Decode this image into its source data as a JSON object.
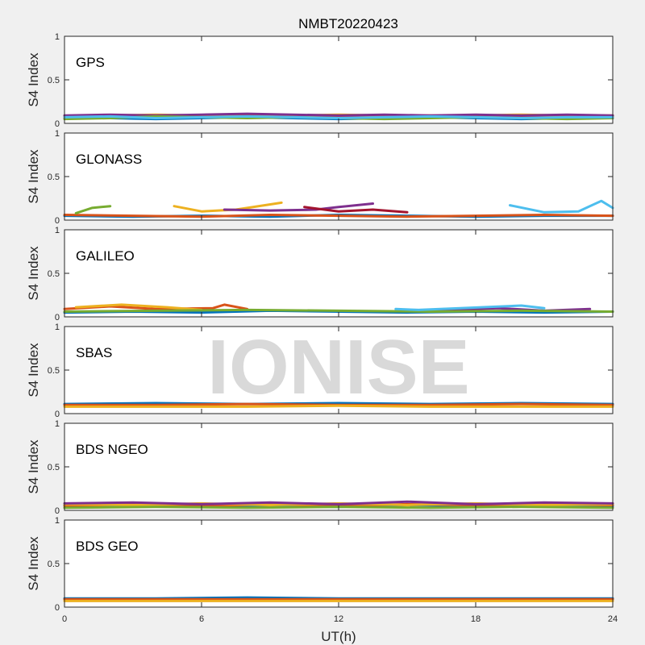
{
  "title": "NMBT20220423",
  "xlabel": "UT(h)",
  "watermark": "IONISE",
  "colors": {
    "background": "#f0f0f0",
    "axes_bg": "#ffffff",
    "axis": "#262626",
    "series": [
      "#0072BD",
      "#D95319",
      "#EDB120",
      "#7E2F8E",
      "#77AC30",
      "#4DBEEE",
      "#A2142F"
    ]
  },
  "chart_data": [
    {
      "type": "line",
      "label": "GPS",
      "ylabel": "S4 Index",
      "xlim": [
        0,
        24
      ],
      "ylim": [
        0,
        1
      ],
      "xticks": [
        0,
        6,
        12,
        18,
        24
      ],
      "yticks": [
        0,
        0.5,
        1
      ],
      "ytick_labels": [
        "0",
        "0.5",
        "1"
      ],
      "series": [
        {
          "x": [
            0,
            2,
            4,
            6,
            8,
            10,
            12,
            14,
            16,
            18,
            20,
            22,
            24
          ],
          "values": [
            0.07,
            0.06,
            0.05,
            0.06,
            0.07,
            0.06,
            0.05,
            0.06,
            0.07,
            0.06,
            0.05,
            0.06,
            0.06
          ]
        },
        {
          "x": [
            0,
            2,
            4,
            6,
            8,
            10,
            12,
            14,
            16,
            18,
            20,
            22,
            24
          ],
          "values": [
            0.06,
            0.08,
            0.07,
            0.08,
            0.09,
            0.08,
            0.07,
            0.08,
            0.09,
            0.08,
            0.07,
            0.08,
            0.08
          ]
        },
        {
          "x": [
            0,
            2,
            4,
            6,
            8,
            10,
            12,
            14,
            16,
            18,
            20,
            22,
            24
          ],
          "values": [
            0.08,
            0.09,
            0.1,
            0.09,
            0.08,
            0.09,
            0.1,
            0.09,
            0.08,
            0.09,
            0.1,
            0.09,
            0.09
          ]
        },
        {
          "x": [
            0,
            2,
            4,
            6,
            8,
            10,
            12,
            14,
            16,
            18,
            20,
            22,
            24
          ],
          "values": [
            0.09,
            0.1,
            0.09,
            0.1,
            0.11,
            0.1,
            0.09,
            0.1,
            0.09,
            0.1,
            0.09,
            0.1,
            0.09
          ]
        },
        {
          "x": [
            0,
            2,
            4,
            6,
            8,
            10,
            12,
            14,
            16,
            18,
            20,
            22,
            24
          ],
          "values": [
            0.05,
            0.06,
            0.08,
            0.07,
            0.06,
            0.07,
            0.06,
            0.05,
            0.06,
            0.07,
            0.06,
            0.05,
            0.06
          ]
        },
        {
          "x": [
            0,
            2,
            4,
            6,
            8,
            10,
            12,
            14,
            16,
            18,
            20,
            22,
            24
          ],
          "values": [
            0.07,
            0.08,
            0.06,
            0.07,
            0.08,
            0.07,
            0.06,
            0.07,
            0.08,
            0.07,
            0.06,
            0.07,
            0.07
          ]
        }
      ]
    },
    {
      "type": "line",
      "label": "GLONASS",
      "ylabel": "S4 Index",
      "xlim": [
        0,
        24
      ],
      "ylim": [
        0,
        1
      ],
      "xticks": [
        0,
        6,
        12,
        18,
        24
      ],
      "yticks": [
        0,
        0.5,
        1
      ],
      "ytick_labels": [
        "0",
        "0.5",
        "1"
      ],
      "series": [
        {
          "x": [
            0,
            3,
            6,
            9,
            12,
            15,
            18,
            21,
            24
          ],
          "values": [
            0.05,
            0.04,
            0.05,
            0.04,
            0.06,
            0.05,
            0.04,
            0.05,
            0.05
          ]
        },
        {
          "x": [
            0,
            3,
            6,
            9,
            12,
            15,
            18,
            21,
            24
          ],
          "values": [
            0.06,
            0.05,
            0.04,
            0.06,
            0.05,
            0.04,
            0.05,
            0.06,
            0.05
          ]
        },
        {
          "x": [
            4.8,
            6,
            7.5,
            9.5
          ],
          "values": [
            0.16,
            0.1,
            0.12,
            0.2
          ]
        },
        {
          "x": [
            7,
            9,
            11,
            12,
            13.5
          ],
          "values": [
            0.12,
            0.11,
            0.12,
            0.15,
            0.19
          ]
        },
        {
          "x": [
            0.5,
            1.2,
            2
          ],
          "values": [
            0.08,
            0.14,
            0.16
          ]
        },
        {
          "x": [
            19.5,
            21,
            22.5,
            23.5,
            24
          ],
          "values": [
            0.17,
            0.09,
            0.1,
            0.22,
            0.14
          ]
        },
        {
          "x": [
            10.5,
            12,
            13.5,
            15
          ],
          "values": [
            0.15,
            0.1,
            0.12,
            0.09
          ]
        }
      ]
    },
    {
      "type": "line",
      "label": "GALILEO",
      "ylabel": "S4 Index",
      "xlim": [
        0,
        24
      ],
      "ylim": [
        0,
        1
      ],
      "xticks": [
        0,
        6,
        12,
        18,
        24
      ],
      "yticks": [
        0,
        0.5,
        1
      ],
      "ytick_labels": [
        "0",
        "0.5",
        "1"
      ],
      "series": [
        {
          "x": [
            0,
            3,
            6,
            9,
            12,
            15,
            18,
            21,
            24
          ],
          "values": [
            0.05,
            0.06,
            0.05,
            0.07,
            0.06,
            0.05,
            0.06,
            0.05,
            0.06
          ]
        },
        {
          "x": [
            0,
            2,
            4,
            6.5,
            7,
            8
          ],
          "values": [
            0.09,
            0.12,
            0.09,
            0.1,
            0.14,
            0.09
          ]
        },
        {
          "x": [
            0.5,
            2.5,
            4.5,
            6
          ],
          "values": [
            0.11,
            0.14,
            0.11,
            0.08
          ]
        },
        {
          "x": [
            16,
            18,
            19,
            21,
            23
          ],
          "values": [
            0.08,
            0.09,
            0.1,
            0.07,
            0.09
          ]
        },
        {
          "x": [
            0,
            4,
            8,
            12,
            16,
            20,
            24
          ],
          "values": [
            0.06,
            0.07,
            0.08,
            0.07,
            0.06,
            0.07,
            0.06
          ]
        },
        {
          "x": [
            14.5,
            15.5,
            20,
            21
          ],
          "values": [
            0.09,
            0.08,
            0.13,
            0.1
          ]
        }
      ]
    },
    {
      "type": "line",
      "label": "SBAS",
      "ylabel": "S4 Index",
      "xlim": [
        0,
        24
      ],
      "ylim": [
        0,
        1
      ],
      "xticks": [
        0,
        6,
        12,
        18,
        24
      ],
      "yticks": [
        0,
        0.5,
        1
      ],
      "ytick_labels": [
        "0",
        "0.5",
        "1"
      ],
      "series": [
        {
          "x": [
            0,
            4,
            8,
            12,
            16,
            20,
            24
          ],
          "values": [
            0.11,
            0.12,
            0.11,
            0.12,
            0.11,
            0.12,
            0.11
          ]
        },
        {
          "x": [
            0,
            4,
            8,
            12,
            16,
            20,
            24
          ],
          "values": [
            0.1,
            0.1,
            0.11,
            0.1,
            0.1,
            0.11,
            0.1
          ]
        },
        {
          "x": [
            0,
            4,
            8,
            12,
            16,
            20,
            24
          ],
          "values": [
            0.08,
            0.08,
            0.08,
            0.09,
            0.08,
            0.08,
            0.08
          ]
        }
      ]
    },
    {
      "type": "line",
      "label": "BDS NGEO",
      "ylabel": "S4 Index",
      "xlim": [
        0,
        24
      ],
      "ylim": [
        0,
        1
      ],
      "xticks": [
        0,
        6,
        12,
        18,
        24
      ],
      "yticks": [
        0,
        0.5,
        1
      ],
      "ytick_labels": [
        "0",
        "0.5",
        "1"
      ],
      "series": [
        {
          "x": [
            0,
            3,
            6,
            9,
            12,
            15,
            18,
            21,
            24
          ],
          "values": [
            0.06,
            0.04,
            0.06,
            0.05,
            0.04,
            0.06,
            0.05,
            0.06,
            0.05
          ]
        },
        {
          "x": [
            0,
            3,
            6,
            9,
            12,
            15,
            18,
            21,
            24
          ],
          "values": [
            0.05,
            0.07,
            0.05,
            0.07,
            0.05,
            0.07,
            0.06,
            0.07,
            0.06
          ]
        },
        {
          "x": [
            0,
            3,
            6,
            9,
            12,
            15,
            18,
            21,
            24
          ],
          "values": [
            0.07,
            0.06,
            0.08,
            0.06,
            0.08,
            0.06,
            0.08,
            0.06,
            0.07
          ]
        },
        {
          "x": [
            0,
            3,
            6,
            9,
            12,
            15,
            18,
            21,
            24
          ],
          "values": [
            0.08,
            0.09,
            0.07,
            0.09,
            0.07,
            0.1,
            0.07,
            0.09,
            0.08
          ]
        },
        {
          "x": [
            0,
            4,
            8,
            12,
            16,
            20,
            24
          ],
          "values": [
            0.03,
            0.04,
            0.03,
            0.04,
            0.03,
            0.04,
            0.03
          ]
        }
      ]
    },
    {
      "type": "line",
      "label": "BDS GEO",
      "ylabel": "S4 Index",
      "xlim": [
        0,
        24
      ],
      "ylim": [
        0,
        1
      ],
      "xticks": [
        0,
        6,
        12,
        18,
        24
      ],
      "yticks": [
        0,
        0.5,
        1
      ],
      "ytick_labels": [
        "0",
        "0.5",
        "1"
      ],
      "series": [
        {
          "x": [
            0,
            4,
            8,
            12,
            16,
            20,
            24
          ],
          "values": [
            0.1,
            0.1,
            0.11,
            0.1,
            0.1,
            0.1,
            0.1
          ]
        },
        {
          "x": [
            0,
            4,
            8,
            12,
            16,
            20,
            24
          ],
          "values": [
            0.09,
            0.09,
            0.09,
            0.09,
            0.09,
            0.09,
            0.09
          ]
        },
        {
          "x": [
            0,
            4,
            8,
            12,
            16,
            20,
            24
          ],
          "values": [
            0.07,
            0.07,
            0.07,
            0.07,
            0.07,
            0.07,
            0.07
          ]
        }
      ]
    }
  ]
}
